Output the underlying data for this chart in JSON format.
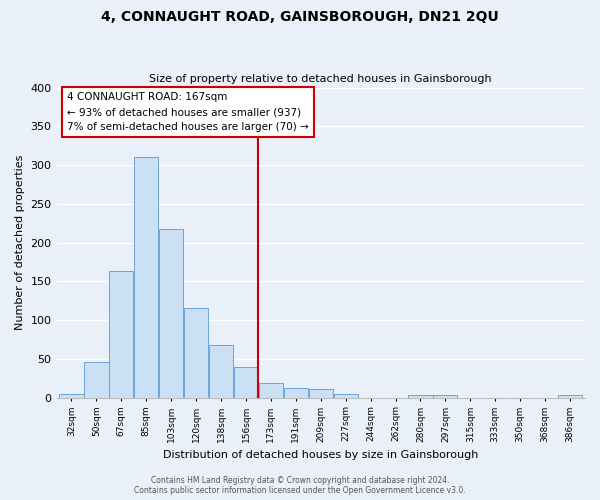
{
  "title": "4, CONNAUGHT ROAD, GAINSBOROUGH, DN21 2QU",
  "subtitle": "Size of property relative to detached houses in Gainsborough",
  "xlabel": "Distribution of detached houses by size in Gainsborough",
  "ylabel": "Number of detached properties",
  "bin_labels": [
    "32sqm",
    "50sqm",
    "67sqm",
    "85sqm",
    "103sqm",
    "120sqm",
    "138sqm",
    "156sqm",
    "173sqm",
    "191sqm",
    "209sqm",
    "227sqm",
    "244sqm",
    "262sqm",
    "280sqm",
    "297sqm",
    "315sqm",
    "333sqm",
    "350sqm",
    "368sqm",
    "386sqm"
  ],
  "bar_values": [
    5,
    46,
    163,
    311,
    217,
    115,
    68,
    39,
    19,
    13,
    11,
    5,
    0,
    0,
    4,
    3,
    0,
    0,
    0,
    0,
    3
  ],
  "bar_color": "#cce0f5",
  "bar_edge_color": "#5b9bd5",
  "vline_color": "#cc0000",
  "annotation_title": "4 CONNAUGHT ROAD: 167sqm",
  "annotation_line1": "← 93% of detached houses are smaller (937)",
  "annotation_line2": "7% of semi-detached houses are larger (70) →",
  "annotation_box_color": "#ffffff",
  "annotation_box_edge_color": "#cc0000",
  "footer_line1": "Contains HM Land Registry data © Crown copyright and database right 2024.",
  "footer_line2": "Contains public sector information licensed under the Open Government Licence v3.0.",
  "background_color": "#eaf0f9",
  "ylim": [
    0,
    400
  ],
  "yticks": [
    0,
    50,
    100,
    150,
    200,
    250,
    300,
    350,
    400
  ],
  "title_fontsize": 10,
  "subtitle_fontsize": 8,
  "vline_index": 8
}
